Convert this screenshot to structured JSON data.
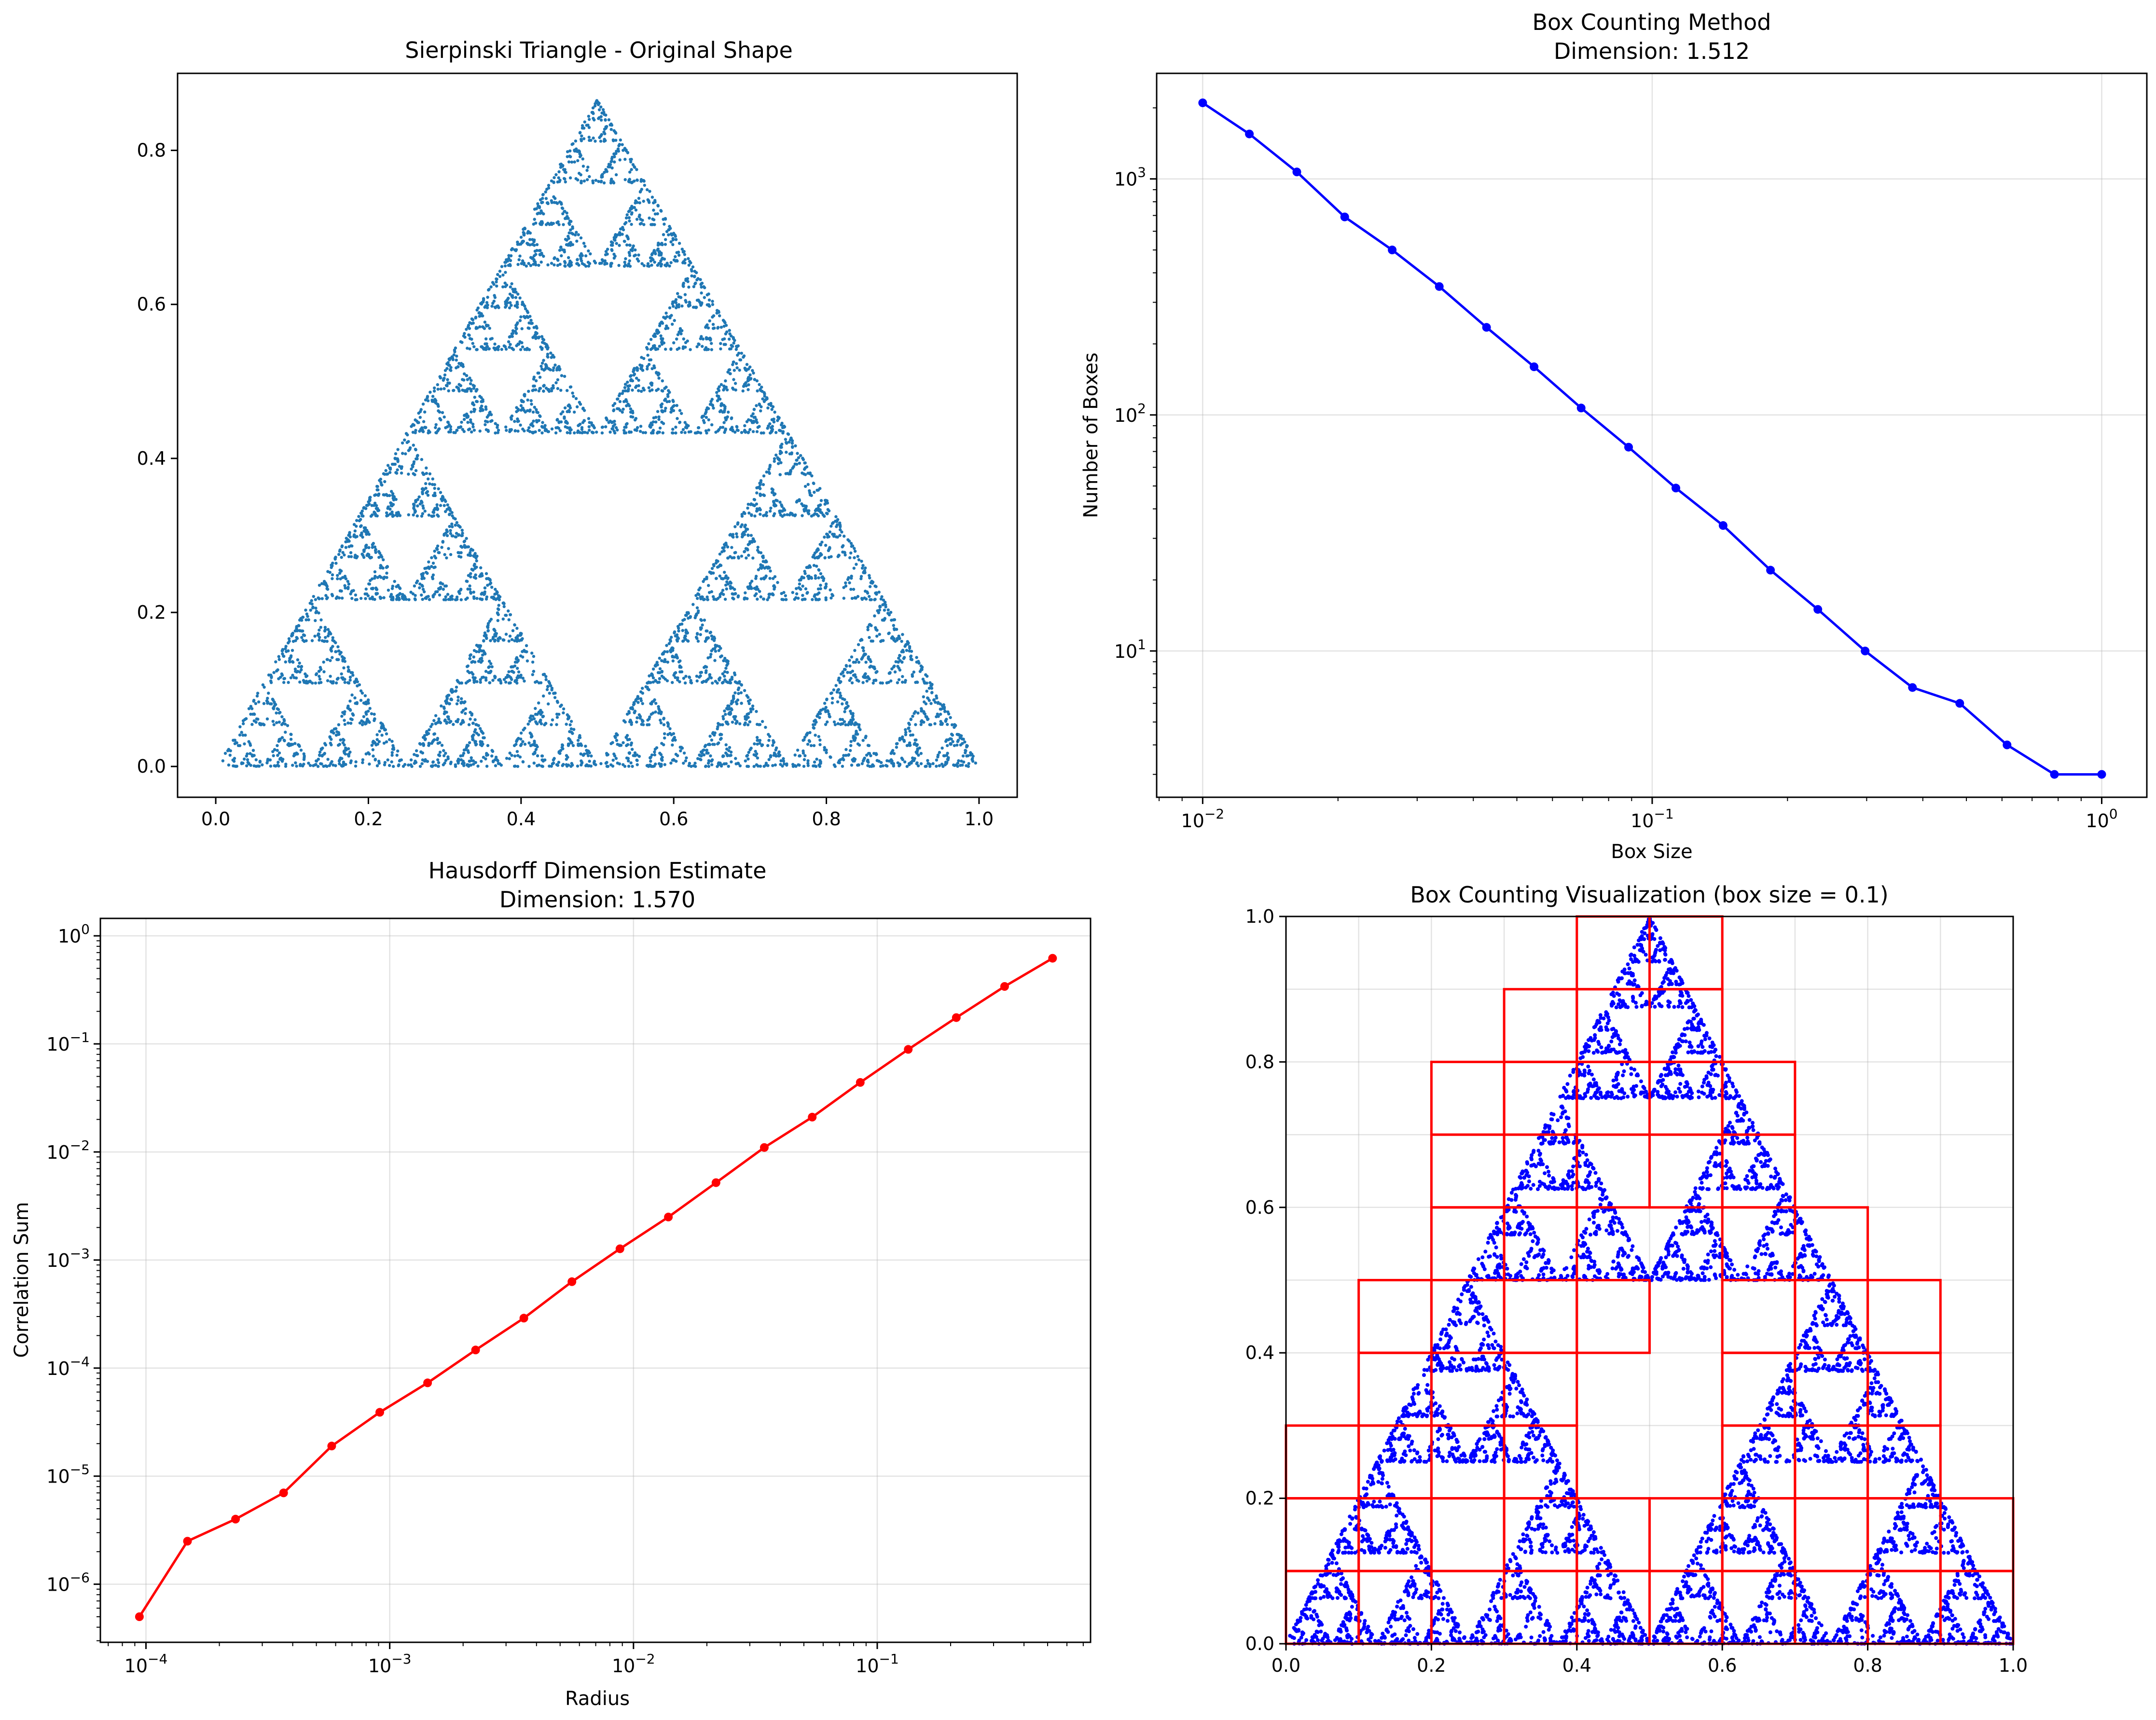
{
  "chart_data": [
    {
      "type": "scatter",
      "title": "Sierpinski Triangle - Original Shape",
      "xlabel": "",
      "ylabel": "",
      "xlim": [
        -0.05,
        1.05
      ],
      "ylim": [
        -0.04,
        0.9
      ],
      "xticks": [
        "0.0",
        "0.2",
        "0.4",
        "0.6",
        "0.8",
        "1.0"
      ],
      "yticks": [
        "0.0",
        "0.2",
        "0.4",
        "0.6",
        "0.8"
      ],
      "grid": false,
      "point_color": "#1f77b4",
      "shape": "sierpinski-triangle",
      "vertices": [
        [
          0,
          0
        ],
        [
          1,
          0
        ],
        [
          0.5,
          0.866
        ]
      ]
    },
    {
      "type": "line",
      "title": "Box Counting Method",
      "subtitle": "Dimension: 1.512",
      "xlabel": "Box Size",
      "ylabel": "Number of Boxes",
      "xscale": "log",
      "yscale": "log",
      "xlim": [
        0.0079,
        1.26
      ],
      "ylim": [
        2.4,
        2800
      ],
      "xticks": [
        0.01,
        0.1,
        1
      ],
      "yticks": [
        10,
        100,
        1000
      ],
      "grid": true,
      "series_color": "#0000ff",
      "x": [
        0.01,
        0.0127,
        0.0162,
        0.0207,
        0.0264,
        0.0336,
        0.0428,
        0.0546,
        0.0695,
        0.0886,
        0.1129,
        0.1438,
        0.1833,
        0.2336,
        0.2976,
        0.3793,
        0.4833,
        0.6158,
        0.7848,
        1.0
      ],
      "values": [
        2100,
        1550,
        1070,
        690,
        500,
        350,
        235,
        160,
        107,
        73,
        49,
        34,
        22,
        15,
        10,
        7,
        6,
        4,
        3,
        3
      ]
    },
    {
      "type": "line",
      "title": "Hausdorff Dimension Estimate",
      "subtitle": "Dimension: 1.570",
      "xlabel": "Radius",
      "ylabel": "Correlation Sum",
      "xscale": "log",
      "yscale": "log",
      "xlim": [
        6.5e-05,
        0.75
      ],
      "ylim": [
        2.9e-07,
        1.45
      ],
      "xticks": [
        0.0001,
        0.001,
        0.01,
        0.1
      ],
      "yticks": [
        1e-06,
        1e-05,
        0.0001,
        0.001,
        0.01,
        0.1,
        1
      ],
      "grid": true,
      "series_color": "#ff0000",
      "x": [
        9.4e-05,
        0.000148,
        0.000233,
        0.000367,
        0.000578,
        0.00091,
        0.00143,
        0.00225,
        0.00355,
        0.00559,
        0.0088,
        0.0139,
        0.0218,
        0.0344,
        0.0541,
        0.0852,
        0.134,
        0.211,
        0.333,
        0.524
      ],
      "values": [
        5e-07,
        2.5e-06,
        4e-06,
        7e-06,
        1.9e-05,
        3.9e-05,
        7.3e-05,
        0.000147,
        0.00029,
        0.00063,
        0.00127,
        0.0025,
        0.0052,
        0.011,
        0.021,
        0.044,
        0.089,
        0.175,
        0.34,
        0.62
      ]
    },
    {
      "type": "scatter",
      "title": "Box Counting Visualization (box size = 0.1)",
      "xlabel": "",
      "ylabel": "",
      "xlim": [
        0,
        1
      ],
      "ylim": [
        0,
        1
      ],
      "xticks": [
        "0.0",
        "0.2",
        "0.4",
        "0.6",
        "0.8",
        "1.0"
      ],
      "yticks": [
        "0.0",
        "0.2",
        "0.4",
        "0.6",
        "0.8",
        "1.0"
      ],
      "grid": true,
      "point_color": "#0000ff",
      "box_color": "#ff0000",
      "box_size": 0.1,
      "shape": "sierpinski-triangle",
      "vertices": [
        [
          0,
          0
        ],
        [
          1,
          0
        ],
        [
          0.5,
          1.0
        ]
      ],
      "occupied_boxes": [
        [
          0,
          0
        ],
        [
          1,
          0
        ],
        [
          2,
          0
        ],
        [
          3,
          0
        ],
        [
          4,
          0
        ],
        [
          5,
          0
        ],
        [
          6,
          0
        ],
        [
          7,
          0
        ],
        [
          8,
          0
        ],
        [
          9,
          0
        ],
        [
          0,
          1
        ],
        [
          1,
          1
        ],
        [
          2,
          1
        ],
        [
          3,
          1
        ],
        [
          4,
          1
        ],
        [
          5,
          1
        ],
        [
          6,
          1
        ],
        [
          7,
          1
        ],
        [
          8,
          1
        ],
        [
          9,
          1
        ],
        [
          0,
          2
        ],
        [
          1,
          2
        ],
        [
          2,
          2
        ],
        [
          3,
          2
        ],
        [
          6,
          2
        ],
        [
          7,
          2
        ],
        [
          8,
          2
        ],
        [
          1,
          3
        ],
        [
          2,
          3
        ],
        [
          3,
          3
        ],
        [
          6,
          3
        ],
        [
          7,
          3
        ],
        [
          8,
          3
        ],
        [
          1,
          4
        ],
        [
          2,
          4
        ],
        [
          3,
          4
        ],
        [
          4,
          4
        ],
        [
          6,
          4
        ],
        [
          7,
          4
        ],
        [
          8,
          4
        ],
        [
          2,
          5
        ],
        [
          3,
          5
        ],
        [
          6,
          5
        ],
        [
          7,
          5
        ],
        [
          2,
          6
        ],
        [
          3,
          6
        ],
        [
          4,
          6
        ],
        [
          5,
          6
        ],
        [
          6,
          6
        ],
        [
          2,
          7
        ],
        [
          3,
          7
        ],
        [
          4,
          7
        ],
        [
          5,
          7
        ],
        [
          6,
          7
        ],
        [
          3,
          8
        ],
        [
          4,
          8
        ],
        [
          5,
          8
        ],
        [
          4,
          9
        ],
        [
          5,
          9
        ]
      ]
    }
  ]
}
